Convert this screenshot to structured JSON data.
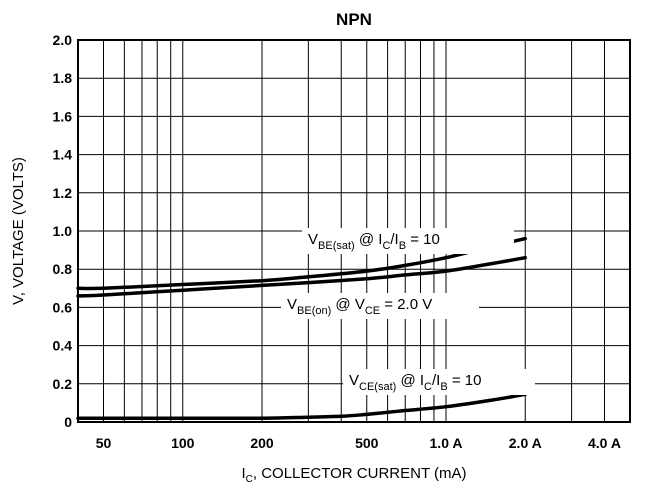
{
  "chart_data": {
    "type": "line",
    "title": "NPN",
    "xlabel": {
      "main": "I",
      "sub": "C",
      "rest": ", COLLECTOR CURRENT (mA)"
    },
    "ylabel": "V, VOLTAGE (VOLTS)",
    "xscale": "log",
    "xlim": [
      40,
      5000
    ],
    "ylim": [
      0,
      2.0
    ],
    "grid": true,
    "x_ticks": [
      {
        "value": 50,
        "label": "50"
      },
      {
        "value": 100,
        "label": "100"
      },
      {
        "value": 200,
        "label": "200"
      },
      {
        "value": 500,
        "label": "500"
      },
      {
        "value": 1000,
        "label": "1.0 A"
      },
      {
        "value": 2000,
        "label": "2.0 A"
      },
      {
        "value": 4000,
        "label": "4.0 A"
      }
    ],
    "y_ticks": [
      {
        "value": 0,
        "label": "0"
      },
      {
        "value": 0.2,
        "label": "0.2"
      },
      {
        "value": 0.4,
        "label": "0.4"
      },
      {
        "value": 0.6,
        "label": "0.6"
      },
      {
        "value": 0.8,
        "label": "0.8"
      },
      {
        "value": 1.0,
        "label": "1.0"
      },
      {
        "value": 1.2,
        "label": "1.2"
      },
      {
        "value": 1.4,
        "label": "1.4"
      },
      {
        "value": 1.6,
        "label": "1.6"
      },
      {
        "value": 1.8,
        "label": "1.8"
      },
      {
        "value": 2.0,
        "label": "2.0"
      }
    ],
    "series": [
      {
        "id": "vbe-sat",
        "x": [
          40,
          50,
          100,
          200,
          300,
          500,
          700,
          1000,
          1500,
          2000
        ],
        "y": [
          0.7,
          0.7,
          0.72,
          0.74,
          0.76,
          0.79,
          0.82,
          0.86,
          0.92,
          0.96
        ],
        "label": [
          {
            "t": "V",
            "s": "normal"
          },
          {
            "t": "BE(sat)",
            "s": "sub"
          },
          {
            "t": " @ I",
            "s": "normal"
          },
          {
            "t": "C",
            "s": "sub"
          },
          {
            "t": "/I",
            "s": "normal"
          },
          {
            "t": "B",
            "s": "sub"
          },
          {
            "t": " = 10",
            "s": "normal"
          }
        ]
      },
      {
        "id": "vbe-on",
        "x": [
          40,
          50,
          100,
          200,
          300,
          500,
          700,
          1000,
          1500,
          2000
        ],
        "y": [
          0.66,
          0.665,
          0.69,
          0.715,
          0.73,
          0.75,
          0.77,
          0.79,
          0.83,
          0.86
        ],
        "label": [
          {
            "t": "V",
            "s": "normal"
          },
          {
            "t": "BE(on)",
            "s": "sub"
          },
          {
            "t": " @ V",
            "s": "normal"
          },
          {
            "t": "CE",
            "s": "sub"
          },
          {
            "t": " = 2.0 V",
            "s": "normal"
          }
        ]
      },
      {
        "id": "vce-sat",
        "x": [
          40,
          50,
          100,
          200,
          300,
          400,
          500,
          700,
          1000,
          1500,
          2000
        ],
        "y": [
          0.02,
          0.02,
          0.02,
          0.02,
          0.025,
          0.03,
          0.04,
          0.06,
          0.08,
          0.115,
          0.145
        ],
        "label": [
          {
            "t": "V",
            "s": "normal"
          },
          {
            "t": "CE(sat)",
            "s": "sub"
          },
          {
            "t": " @ I",
            "s": "normal"
          },
          {
            "t": "C",
            "s": "sub"
          },
          {
            "t": "/I",
            "s": "normal"
          },
          {
            "t": "B",
            "s": "sub"
          },
          {
            "t": " = 10",
            "s": "normal"
          }
        ]
      }
    ]
  }
}
